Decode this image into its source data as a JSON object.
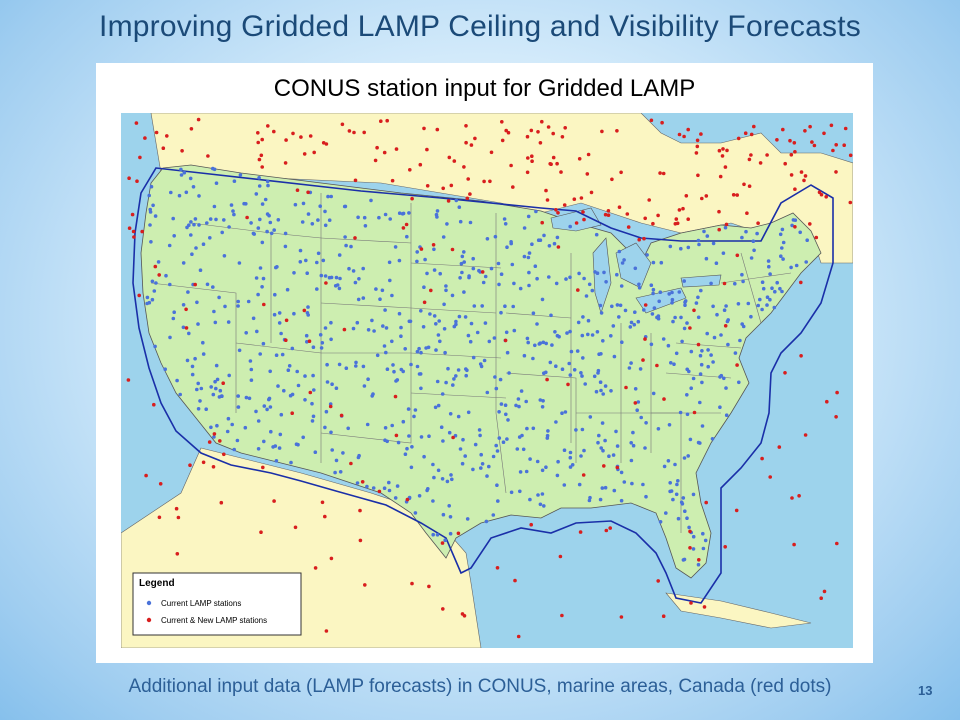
{
  "slide": {
    "title": "Improving Gridded LAMP Ceiling and Visibility Forecasts",
    "caption": "Additional input data (LAMP forecasts) in CONUS, marine areas, Canada (red dots)",
    "page_number": "13"
  },
  "map": {
    "title": "CONUS station input for Gridded LAMP",
    "legend": {
      "title": "Legend",
      "items": [
        {
          "label": "Current LAMP stations",
          "color": "#4a72d9"
        },
        {
          "label": "Current & New LAMP stations",
          "color": "#d81e1e"
        }
      ]
    },
    "colors": {
      "ocean": "#9dd3ec",
      "conus_land": "#cdeeb0",
      "other_land": "#fbf6c2",
      "boundary": "#1a2fa8"
    }
  }
}
